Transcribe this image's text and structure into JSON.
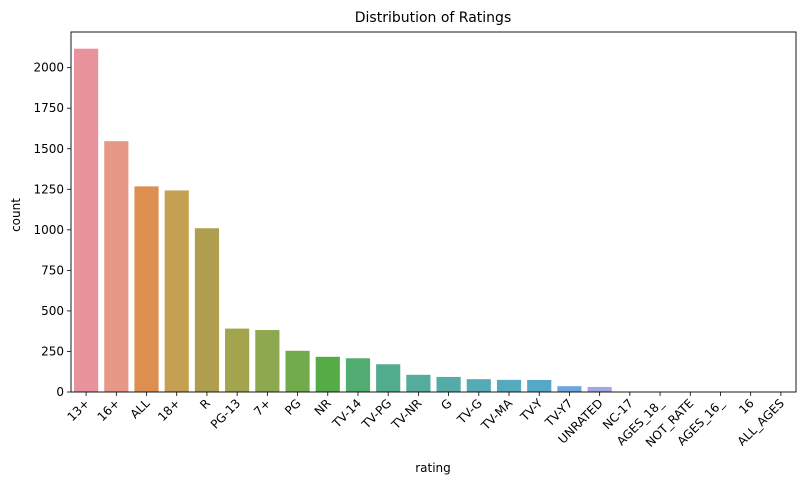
{
  "chart_data": {
    "type": "bar",
    "title": "Distribution of Ratings",
    "xlabel": "rating",
    "ylabel": "count",
    "ylim": [
      0,
      2220
    ],
    "yticks": [
      0,
      250,
      500,
      750,
      1000,
      1250,
      1500,
      1750,
      2000
    ],
    "grid": false,
    "categories": [
      "13+",
      "16+",
      "ALL",
      "18+",
      "R",
      "PG-13",
      "7+",
      "PG",
      "NR",
      "TV-14",
      "TV-PG",
      "TV-NR",
      "G",
      "TV-G",
      "TV-MA",
      "TV-Y",
      "TV-Y7",
      "UNRATED",
      "NC-17",
      "AGES_18_",
      "NOT_RATE",
      "AGES_16_",
      "16",
      "ALL_AGES"
    ],
    "values": [
      2117,
      1547,
      1268,
      1243,
      1010,
      391,
      382,
      254,
      217,
      208,
      171,
      106,
      93,
      79,
      75,
      74,
      36,
      31,
      2,
      1,
      1,
      1,
      1,
      1
    ],
    "colors": [
      "#e8929c",
      "#e89887",
      "#dc8f4f",
      "#c6a052",
      "#b09e4f",
      "#a2a44e",
      "#8ea84f",
      "#72ab4b",
      "#55ac46",
      "#52ad72",
      "#52ad8e",
      "#53ac9c",
      "#55aba8",
      "#55abb3",
      "#55aabd",
      "#55a8c7",
      "#6ca6dc",
      "#a1a6e5",
      "#b8a6e4",
      "#c9a3e4",
      "#d99ddc",
      "#e39ad0",
      "#e79bc0",
      "#e89ab1"
    ]
  }
}
